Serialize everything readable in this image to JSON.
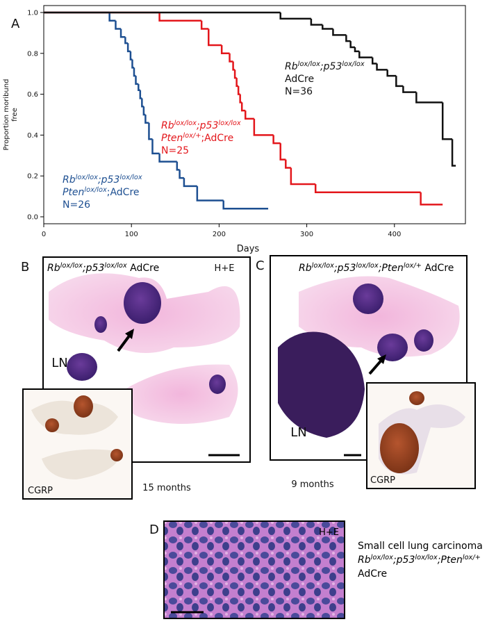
{
  "chart_data": {
    "type": "step",
    "panel_letter": "A",
    "xlabel": "Days",
    "ylabel": [
      "Proportion moribund",
      "free"
    ],
    "xlim": [
      0,
      481
    ],
    "ylim": [
      -0.034,
      1.034
    ],
    "xticks": [
      0,
      100,
      200,
      300,
      400
    ],
    "yticks": [
      {
        "value": 0,
        "label": "0.0"
      },
      0.2,
      0.4,
      0.6,
      0.8,
      {
        "value": 1,
        "label": "1.0"
      }
    ],
    "series": [
      {
        "color": "#1d4f91",
        "label_lines": [
          [
            {
              "text": "Rb",
              "italic": true
            },
            {
              "text": "lox/lox",
              "italic": true,
              "sup": true
            },
            {
              "text": ";p53",
              "italic": true
            },
            {
              "text": "lox/lox",
              "italic": true,
              "sup": true
            }
          ],
          [
            {
              "text": "Pten",
              "italic": true
            },
            {
              "text": "lox/lox",
              "italic": true,
              "sup": true
            },
            {
              "text": ";AdCre"
            }
          ],
          [
            {
              "text": "N=26"
            }
          ]
        ],
        "x": [
          0,
          75,
          82,
          88,
          93,
          96,
          99,
          101,
          103,
          105,
          108,
          110,
          112,
          114,
          116,
          120,
          124,
          132,
          152,
          155,
          160,
          175,
          205,
          256
        ],
        "values": [
          1,
          0.96,
          0.92,
          0.88,
          0.85,
          0.81,
          0.77,
          0.73,
          0.69,
          0.65,
          0.62,
          0.58,
          0.54,
          0.5,
          0.46,
          0.38,
          0.31,
          0.27,
          0.23,
          0.19,
          0.15,
          0.08,
          0.04,
          0.04
        ]
      },
      {
        "color": "#e3161b",
        "label_lines": [
          [
            {
              "text": "Rb",
              "italic": true
            },
            {
              "text": "lox/lox",
              "italic": true,
              "sup": true
            },
            {
              "text": ";p53",
              "italic": true
            },
            {
              "text": "lox/lox",
              "italic": true,
              "sup": true
            }
          ],
          [
            {
              "text": "Pten",
              "italic": true
            },
            {
              "text": "lox/+",
              "italic": true,
              "sup": true
            },
            {
              "text": ";AdCre"
            }
          ],
          [
            {
              "text": "N=25"
            }
          ]
        ],
        "x": [
          0,
          132,
          180,
          188,
          203,
          212,
          216,
          218,
          220,
          222,
          224,
          226,
          230,
          240,
          262,
          270,
          276,
          282,
          310,
          430,
          455
        ],
        "values": [
          1,
          0.96,
          0.92,
          0.84,
          0.8,
          0.76,
          0.72,
          0.68,
          0.64,
          0.6,
          0.56,
          0.52,
          0.48,
          0.4,
          0.36,
          0.28,
          0.24,
          0.16,
          0.12,
          0.06,
          0.06
        ]
      },
      {
        "color": "#111111",
        "label_lines": [
          [
            {
              "text": "Rb",
              "italic": true
            },
            {
              "text": "lox/lox",
              "italic": true,
              "sup": true
            },
            {
              "text": ";p53",
              "italic": true
            },
            {
              "text": "lox/lox",
              "italic": true,
              "sup": true
            }
          ],
          [
            {
              "text": "AdCre"
            }
          ],
          [
            {
              "text": "N=36"
            }
          ]
        ],
        "x": [
          0,
          270,
          305,
          318,
          330,
          345,
          350,
          355,
          360,
          375,
          380,
          392,
          402,
          410,
          425,
          455,
          466,
          470
        ],
        "values": [
          1,
          0.97,
          0.94,
          0.92,
          0.89,
          0.86,
          0.83,
          0.81,
          0.78,
          0.75,
          0.72,
          0.69,
          0.64,
          0.61,
          0.56,
          0.38,
          0.25,
          0.25
        ]
      }
    ]
  },
  "panels": {
    "b": {
      "letter": "B",
      "title": [
        [
          {
            "text": "Rb",
            "italic": true
          },
          {
            "text": "lox/lox",
            "italic": true,
            "sup": true
          },
          {
            "text": ";p53",
            "italic": true
          },
          {
            "text": "lox/lox",
            "italic": true,
            "sup": true
          },
          {
            "text": " AdCre"
          }
        ]
      ],
      "stain": "H+E",
      "node": "LN",
      "inset": "CGRP",
      "age": "15 months"
    },
    "c": {
      "letter": "C",
      "title": [
        [
          {
            "text": "Rb",
            "italic": true
          },
          {
            "text": "lox/lox",
            "italic": true,
            "sup": true
          },
          {
            "text": ";p53",
            "italic": true
          },
          {
            "text": "lox/lox",
            "italic": true,
            "sup": true
          },
          {
            "text": ";Pten",
            "italic": true
          },
          {
            "text": "lox/+",
            "italic": true,
            "sup": true
          },
          {
            "text": " AdCre"
          }
        ]
      ],
      "node": "LN",
      "inset": "CGRP",
      "age": "9 months"
    },
    "d": {
      "letter": "D",
      "stain": "H+E",
      "caption": [
        [
          {
            "text": "Small cell lung carcinoma"
          }
        ],
        [
          {
            "text": "Rb",
            "italic": true
          },
          {
            "text": "lox/lox",
            "italic": true,
            "sup": true
          },
          {
            "text": ";p53",
            "italic": true
          },
          {
            "text": "lox/lox",
            "italic": true,
            "sup": true
          },
          {
            "text": ";Pten",
            "italic": true
          },
          {
            "text": "lox/+",
            "italic": true,
            "sup": true
          }
        ],
        [
          {
            "text": "AdCre"
          }
        ]
      ]
    }
  }
}
